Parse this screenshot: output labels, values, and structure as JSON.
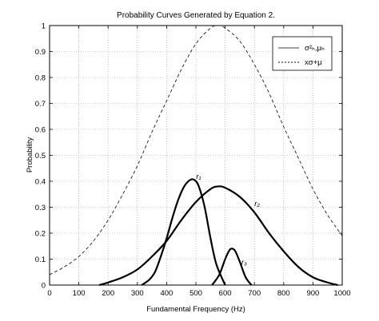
{
  "chart_data": {
    "type": "line",
    "title": "Probability Curves Generated by Equation 2.",
    "xlabel": "Fundamental Frequency (Hz)",
    "ylabel": "Probability",
    "xlim": [
      0,
      1000
    ],
    "ylim": [
      0,
      1
    ],
    "xticks": [
      "0",
      "100",
      "200",
      "300",
      "400",
      "500",
      "600",
      "700",
      "800",
      "900",
      "1000"
    ],
    "yticks": [
      "0",
      "0.1",
      "0.2",
      "0.3",
      "0.4",
      "0.5",
      "0.6",
      "0.7",
      "0.8",
      "0.9",
      "1"
    ],
    "grid": true,
    "legend": {
      "placement": "top-right",
      "entries": [
        {
          "label": "σ²ₕ,μₕ",
          "style": "solid"
        },
        {
          "label": "xσ+μ",
          "style": "dashed"
        }
      ]
    },
    "series": [
      {
        "style": "dashed",
        "x": [
          0,
          50,
          100,
          150,
          200,
          250,
          300,
          350,
          400,
          450,
          500,
          550,
          575,
          600,
          650,
          700,
          750,
          800,
          850,
          900,
          950,
          1000
        ],
        "y": [
          0.04,
          0.07,
          0.11,
          0.17,
          0.25,
          0.35,
          0.46,
          0.59,
          0.71,
          0.83,
          0.93,
          0.99,
          1.0,
          0.99,
          0.94,
          0.85,
          0.74,
          0.61,
          0.49,
          0.37,
          0.27,
          0.19
        ]
      },
      {
        "label": "r₁",
        "style": "solid",
        "x": [
          315,
          340,
          360,
          380,
          400,
          420,
          440,
          460,
          480,
          495,
          510,
          530,
          550,
          570,
          600
        ],
        "y": [
          0.0,
          0.02,
          0.05,
          0.11,
          0.18,
          0.26,
          0.33,
          0.38,
          0.405,
          0.405,
          0.38,
          0.3,
          0.18,
          0.08,
          0.0
        ]
      },
      {
        "label": "r₃",
        "style": "solid",
        "x": [
          170,
          200,
          250,
          300,
          350,
          400,
          450,
          500,
          550,
          575,
          600,
          650,
          700,
          750,
          800,
          850,
          900,
          950,
          985
        ],
        "y": [
          0.0,
          0.01,
          0.03,
          0.06,
          0.11,
          0.17,
          0.25,
          0.32,
          0.37,
          0.38,
          0.375,
          0.34,
          0.28,
          0.2,
          0.13,
          0.07,
          0.03,
          0.01,
          0.0
        ]
      },
      {
        "label": "r₂",
        "style": "solid",
        "x": [
          555,
          580,
          600,
          615,
          625,
          635,
          650,
          670,
          690
        ],
        "y": [
          0.0,
          0.04,
          0.1,
          0.135,
          0.14,
          0.13,
          0.09,
          0.03,
          0.0
        ]
      }
    ]
  }
}
